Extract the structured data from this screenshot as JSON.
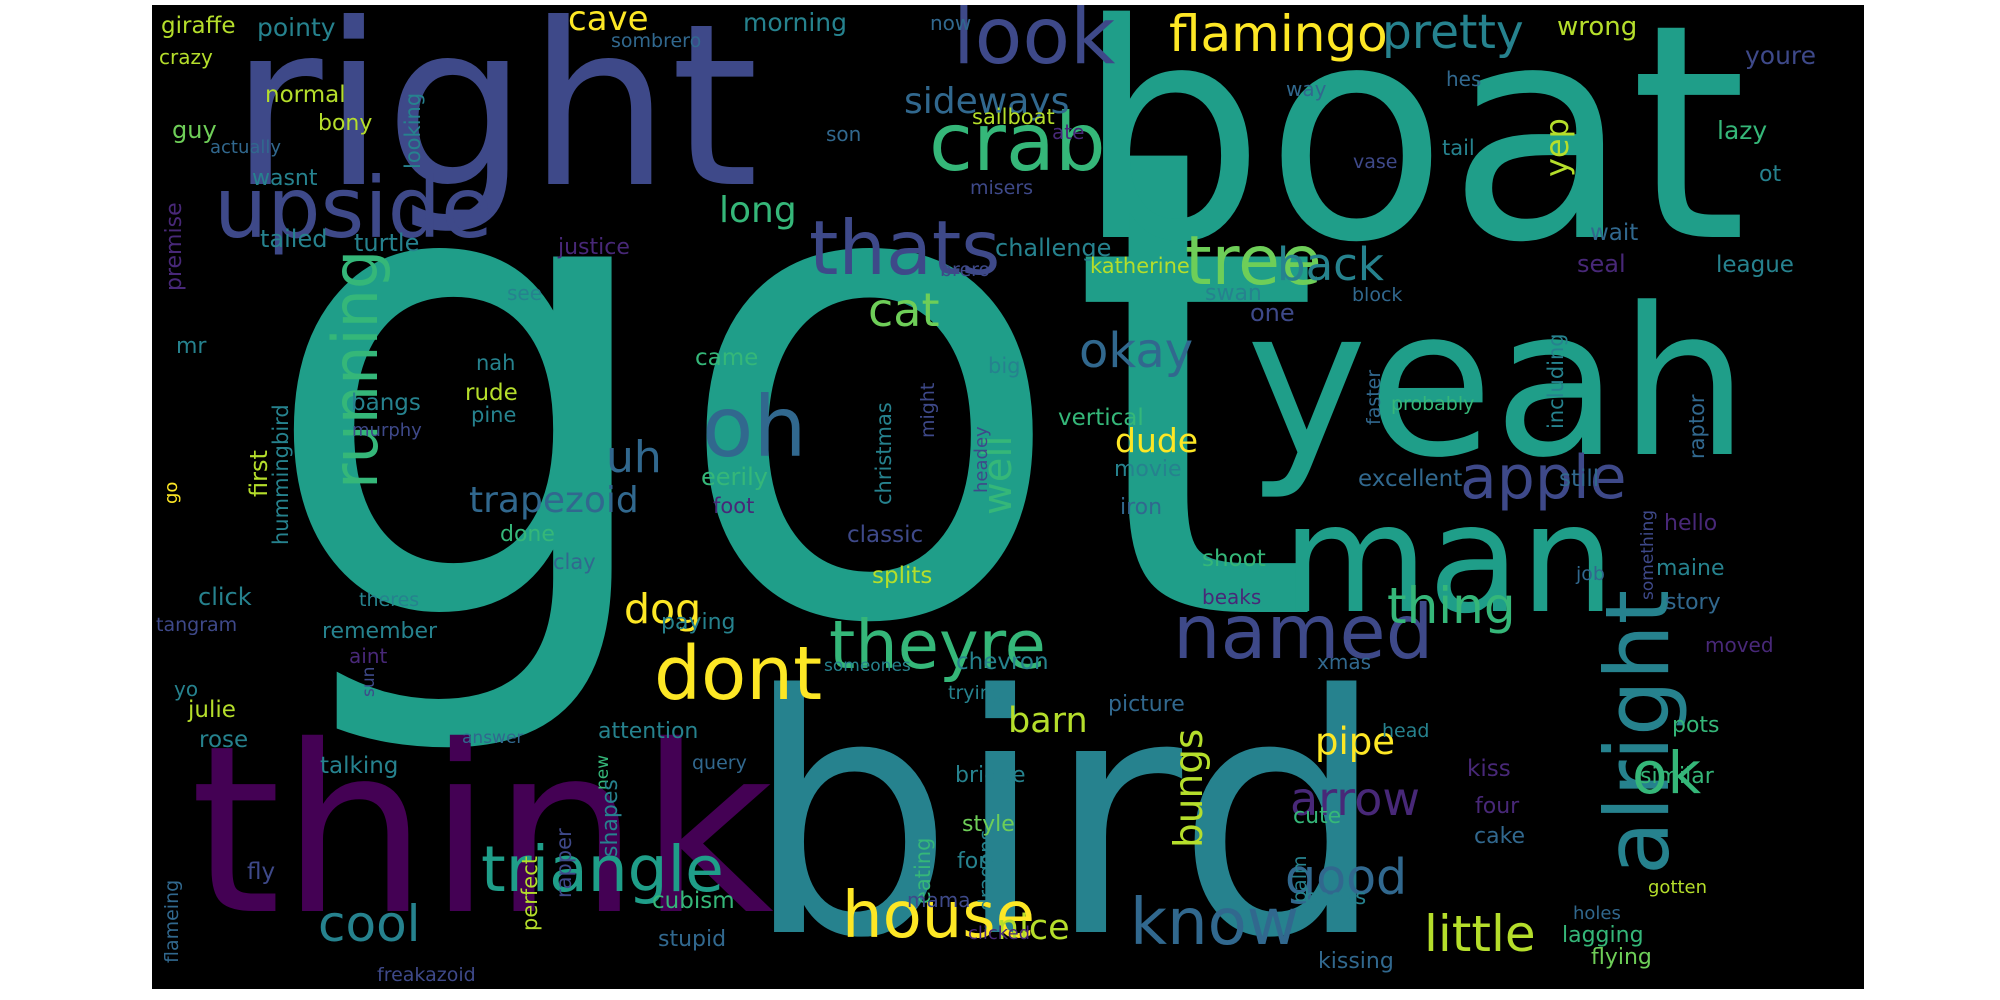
{
  "background_color": "#000000",
  "palette": {
    "dark_purple": "#440154",
    "indigo": "#482878",
    "slate_blue": "#3e4989",
    "blue": "#31688e",
    "teal_blue": "#26828e",
    "teal": "#1f9e89",
    "green": "#35b779",
    "light_green": "#6ece58",
    "lime": "#b5de2b",
    "yellow": "#fde725"
  },
  "words": [
    {
      "text": "got",
      "color": "#1f9e89"
    },
    {
      "text": "boat",
      "color": "#1f9e89"
    },
    {
      "text": "right",
      "color": "#3e4989"
    },
    {
      "text": "bird",
      "color": "#26828e"
    },
    {
      "text": "yeah",
      "color": "#1f9e89"
    },
    {
      "text": "think",
      "color": "#440154"
    },
    {
      "text": "man",
      "color": "#1f9e89"
    },
    {
      "text": "upside",
      "color": "#3e4989"
    },
    {
      "text": "look",
      "color": "#3e4989"
    },
    {
      "text": "crab",
      "color": "#35b779"
    },
    {
      "text": "thats",
      "color": "#3e4989"
    },
    {
      "text": "oh",
      "color": "#31688e"
    },
    {
      "text": "named",
      "color": "#3e4989"
    },
    {
      "text": "theyre",
      "color": "#35b779"
    },
    {
      "text": "dont",
      "color": "#fde725"
    },
    {
      "text": "alright",
      "color": "#26828e"
    },
    {
      "text": "tree",
      "color": "#6ece58"
    },
    {
      "text": "apple",
      "color": "#3e4989"
    },
    {
      "text": "triangle",
      "color": "#1f9e89"
    },
    {
      "text": "house",
      "color": "#fde725"
    },
    {
      "text": "know",
      "color": "#31688e"
    },
    {
      "text": "running",
      "color": "#35b779"
    },
    {
      "text": "flamingo",
      "color": "#fde725"
    },
    {
      "text": "pretty",
      "color": "#26828e"
    },
    {
      "text": "ok",
      "color": "#35b779"
    },
    {
      "text": "cool",
      "color": "#26828e"
    },
    {
      "text": "little",
      "color": "#b5de2b"
    },
    {
      "text": "arrow",
      "color": "#482878"
    },
    {
      "text": "good",
      "color": "#31688e"
    },
    {
      "text": "thing",
      "color": "#35b779"
    },
    {
      "text": "back",
      "color": "#26828e"
    },
    {
      "text": "cat",
      "color": "#6ece58"
    },
    {
      "text": "okay",
      "color": "#31688e"
    },
    {
      "text": "well",
      "color": "#35b779"
    },
    {
      "text": "uh",
      "color": "#31688e"
    },
    {
      "text": "dog",
      "color": "#fde725"
    },
    {
      "text": "bungs",
      "color": "#b5de2b"
    },
    {
      "text": "trapezoid",
      "color": "#31688e"
    },
    {
      "text": "sideways",
      "color": "#31688e"
    },
    {
      "text": "long",
      "color": "#35b779"
    },
    {
      "text": "cave",
      "color": "#fde725"
    },
    {
      "text": "yep",
      "color": "#b5de2b"
    },
    {
      "text": "pipe",
      "color": "#fde725"
    },
    {
      "text": "barn",
      "color": "#b5de2b"
    },
    {
      "text": "dude",
      "color": "#fde725"
    },
    {
      "text": "nice",
      "color": "#b5de2b"
    },
    {
      "text": "giraffe",
      "color": "#b5de2b"
    },
    {
      "text": "pointy",
      "color": "#26828e"
    },
    {
      "text": "morning",
      "color": "#26828e"
    },
    {
      "text": "now",
      "color": "#31688e"
    },
    {
      "text": "wrong",
      "color": "#b5de2b"
    },
    {
      "text": "youre",
      "color": "#3e4989"
    },
    {
      "text": "crazy",
      "color": "#b5de2b"
    },
    {
      "text": "sombrero",
      "color": "#31688e"
    },
    {
      "text": "sailboat",
      "color": "#b5de2b"
    },
    {
      "text": "way",
      "color": "#31688e"
    },
    {
      "text": "hes",
      "color": "#31688e"
    },
    {
      "text": "normal",
      "color": "#b5de2b"
    },
    {
      "text": "bony",
      "color": "#b5de2b"
    },
    {
      "text": "guy",
      "color": "#6ece58"
    },
    {
      "text": "actually",
      "color": "#31688e"
    },
    {
      "text": "wasnt",
      "color": "#26828e"
    },
    {
      "text": "looking",
      "color": "#26828e"
    },
    {
      "text": "son",
      "color": "#31688e"
    },
    {
      "text": "ate",
      "color": "#482878"
    },
    {
      "text": "tail",
      "color": "#26828e"
    },
    {
      "text": "lazy",
      "color": "#35b779"
    },
    {
      "text": "vase",
      "color": "#3e4989"
    },
    {
      "text": "ot",
      "color": "#26828e"
    },
    {
      "text": "misers",
      "color": "#3e4989"
    },
    {
      "text": "premise",
      "color": "#482878"
    },
    {
      "text": "tailed",
      "color": "#26828e"
    },
    {
      "text": "turtle",
      "color": "#26828e"
    },
    {
      "text": "justice",
      "color": "#482878"
    },
    {
      "text": "challenge",
      "color": "#26828e"
    },
    {
      "text": "brero",
      "color": "#3e4989"
    },
    {
      "text": "katherine",
      "color": "#b5de2b"
    },
    {
      "text": "swan",
      "color": "#26828e"
    },
    {
      "text": "wait",
      "color": "#31688e"
    },
    {
      "text": "seal",
      "color": "#482878"
    },
    {
      "text": "league",
      "color": "#26828e"
    },
    {
      "text": "see",
      "color": "#26828e"
    },
    {
      "text": "block",
      "color": "#31688e"
    },
    {
      "text": "one",
      "color": "#3e4989"
    },
    {
      "text": "including",
      "color": "#26828e"
    },
    {
      "text": "mr",
      "color": "#26828e"
    },
    {
      "text": "christmas",
      "color": "#26828e"
    },
    {
      "text": "might",
      "color": "#3e4989"
    },
    {
      "text": "big",
      "color": "#26828e"
    },
    {
      "text": "came",
      "color": "#35b779"
    },
    {
      "text": "nah",
      "color": "#26828e"
    },
    {
      "text": "rude",
      "color": "#b5de2b"
    },
    {
      "text": "pine",
      "color": "#26828e"
    },
    {
      "text": "hummingbird",
      "color": "#26828e"
    },
    {
      "text": "bangs",
      "color": "#26828e"
    },
    {
      "text": "first",
      "color": "#b5de2b"
    },
    {
      "text": "murphy",
      "color": "#3e4989"
    },
    {
      "text": "vertical",
      "color": "#35b779"
    },
    {
      "text": "faster",
      "color": "#31688e"
    },
    {
      "text": "probably",
      "color": "#35b779"
    },
    {
      "text": "raptor",
      "color": "#31688e"
    },
    {
      "text": "headey",
      "color": "#3e4989"
    },
    {
      "text": "go",
      "color": "#fde725"
    },
    {
      "text": "eerily",
      "color": "#35b779"
    },
    {
      "text": "movie",
      "color": "#26828e"
    },
    {
      "text": "excellent",
      "color": "#31688e"
    },
    {
      "text": "still",
      "color": "#31688e"
    },
    {
      "text": "foot",
      "color": "#482878"
    },
    {
      "text": "iron",
      "color": "#31688e"
    },
    {
      "text": "something",
      "color": "#3e4989"
    },
    {
      "text": "hello",
      "color": "#482878"
    },
    {
      "text": "done",
      "color": "#35b779"
    },
    {
      "text": "clay",
      "color": "#31688e"
    },
    {
      "text": "classic",
      "color": "#3e4989"
    },
    {
      "text": "shoot",
      "color": "#35b779"
    },
    {
      "text": "maine",
      "color": "#26828e"
    },
    {
      "text": "job",
      "color": "#31688e"
    },
    {
      "text": "click",
      "color": "#26828e"
    },
    {
      "text": "theres",
      "color": "#26828e"
    },
    {
      "text": "splits",
      "color": "#b5de2b"
    },
    {
      "text": "beaks",
      "color": "#482878"
    },
    {
      "text": "story",
      "color": "#31688e"
    },
    {
      "text": "tangram",
      "color": "#3e4989"
    },
    {
      "text": "remember",
      "color": "#26828e"
    },
    {
      "text": "paying",
      "color": "#26828e"
    },
    {
      "text": "moved",
      "color": "#482878"
    },
    {
      "text": "aint",
      "color": "#482878"
    },
    {
      "text": "sun",
      "color": "#3e4989"
    },
    {
      "text": "someones",
      "color": "#26828e"
    },
    {
      "text": "chevron",
      "color": "#26828e"
    },
    {
      "text": "xmas",
      "color": "#31688e"
    },
    {
      "text": "yo",
      "color": "#26828e"
    },
    {
      "text": "julie",
      "color": "#b5de2b"
    },
    {
      "text": "trying",
      "color": "#26828e"
    },
    {
      "text": "picture",
      "color": "#31688e"
    },
    {
      "text": "rose",
      "color": "#26828e"
    },
    {
      "text": "attention",
      "color": "#26828e"
    },
    {
      "text": "head",
      "color": "#26828e"
    },
    {
      "text": "pots",
      "color": "#35b779"
    },
    {
      "text": "answer",
      "color": "#31688e"
    },
    {
      "text": "new",
      "color": "#35b779"
    },
    {
      "text": "talking",
      "color": "#26828e"
    },
    {
      "text": "query",
      "color": "#31688e"
    },
    {
      "text": "shapes",
      "color": "#26828e"
    },
    {
      "text": "rapper",
      "color": "#3e4989"
    },
    {
      "text": "bridge",
      "color": "#26828e"
    },
    {
      "text": "kiss",
      "color": "#482878"
    },
    {
      "text": "similar",
      "color": "#35b779"
    },
    {
      "text": "four",
      "color": "#482878"
    },
    {
      "text": "dragons",
      "color": "#26828e"
    },
    {
      "text": "style",
      "color": "#6ece58"
    },
    {
      "text": "cute",
      "color": "#35b779"
    },
    {
      "text": "cake",
      "color": "#31688e"
    },
    {
      "text": "perfect",
      "color": "#b5de2b"
    },
    {
      "text": "eating",
      "color": "#35b779"
    },
    {
      "text": "palm",
      "color": "#26828e"
    },
    {
      "text": "fly",
      "color": "#3e4989"
    },
    {
      "text": "form",
      "color": "#26828e"
    },
    {
      "text": "books",
      "color": "#26828e"
    },
    {
      "text": "gotten",
      "color": "#b5de2b"
    },
    {
      "text": "mama",
      "color": "#3e4989"
    },
    {
      "text": "flameing",
      "color": "#31688e"
    },
    {
      "text": "cubism",
      "color": "#35b779"
    },
    {
      "text": "clicked",
      "color": "#482878"
    },
    {
      "text": "holes",
      "color": "#31688e"
    },
    {
      "text": "lagging",
      "color": "#35b779"
    },
    {
      "text": "stupid",
      "color": "#31688e"
    },
    {
      "text": "kissing",
      "color": "#31688e"
    },
    {
      "text": "flying",
      "color": "#6ece58"
    },
    {
      "text": "freakazoid",
      "color": "#3e4989"
    }
  ]
}
